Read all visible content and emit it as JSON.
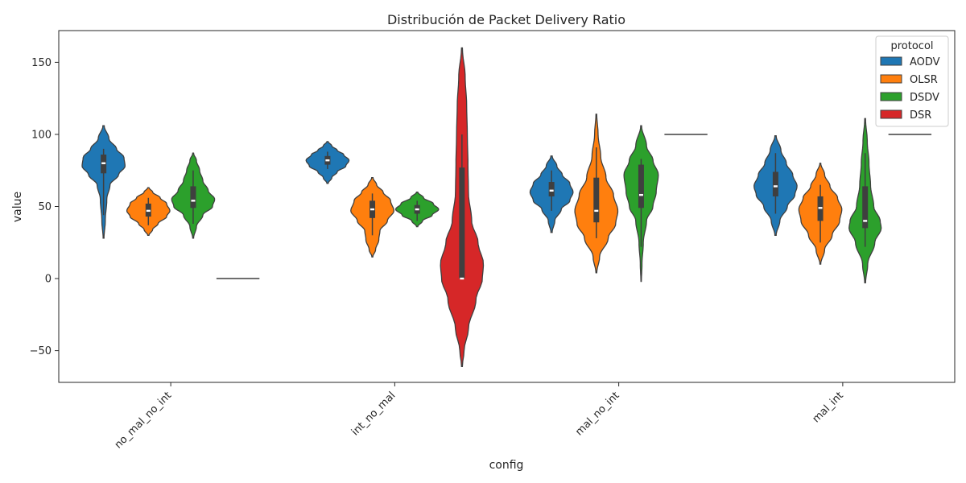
{
  "chart_data": {
    "type": "violin",
    "title": "Distribución de Packet Delivery Ratio",
    "xlabel": "config",
    "ylabel": "value",
    "ylim": [
      -72,
      172
    ],
    "yticks": [
      -50,
      0,
      50,
      100,
      150
    ],
    "yticklabels": [
      "−50",
      "0",
      "50",
      "100",
      "150"
    ],
    "categories": [
      "no_mal_no_int",
      "int_no_mal",
      "mal_no_int",
      "mal_int"
    ],
    "grid": false,
    "legend": {
      "title": "protocol",
      "placement": "top-right"
    },
    "series": [
      {
        "name": "AODV",
        "color": "#1f77b4",
        "groups": [
          {
            "violin_min": 28,
            "violin_max": 106,
            "q1": 73,
            "median": 80,
            "q3": 86,
            "whisker_low": 44,
            "whisker_high": 90,
            "profile": [
              [
                28,
                0.02
              ],
              [
                40,
                0.08
              ],
              [
                55,
                0.15
              ],
              [
                65,
                0.3
              ],
              [
                72,
                0.7
              ],
              [
                78,
                1.0
              ],
              [
                84,
                0.95
              ],
              [
                90,
                0.6
              ],
              [
                97,
                0.25
              ],
              [
                106,
                0.03
              ]
            ]
          },
          {
            "violin_min": 66,
            "violin_max": 95,
            "q1": 79,
            "median": 82,
            "q3": 85,
            "whisker_low": 76,
            "whisker_high": 88,
            "profile": [
              [
                66,
                0.03
              ],
              [
                70,
                0.2
              ],
              [
                74,
                0.45
              ],
              [
                78,
                0.85
              ],
              [
                82,
                1.0
              ],
              [
                86,
                0.75
              ],
              [
                89,
                0.45
              ],
              [
                92,
                0.2
              ],
              [
                95,
                0.03
              ]
            ]
          },
          {
            "violin_min": 32,
            "violin_max": 85,
            "q1": 57,
            "median": 61,
            "q3": 67,
            "whisker_low": 47,
            "whisker_high": 75,
            "profile": [
              [
                32,
                0.03
              ],
              [
                40,
                0.15
              ],
              [
                48,
                0.45
              ],
              [
                54,
                0.85
              ],
              [
                60,
                1.0
              ],
              [
                66,
                0.85
              ],
              [
                72,
                0.5
              ],
              [
                78,
                0.25
              ],
              [
                85,
                0.03
              ]
            ]
          },
          {
            "violin_min": 30,
            "violin_max": 99,
            "q1": 57,
            "median": 64,
            "q3": 74,
            "whisker_low": 45,
            "whisker_high": 87,
            "profile": [
              [
                30,
                0.03
              ],
              [
                40,
                0.2
              ],
              [
                50,
                0.55
              ],
              [
                58,
                0.9
              ],
              [
                64,
                1.0
              ],
              [
                72,
                0.8
              ],
              [
                80,
                0.5
              ],
              [
                89,
                0.25
              ],
              [
                99,
                0.03
              ]
            ]
          }
        ]
      },
      {
        "name": "OLSR",
        "color": "#ff7f0e",
        "groups": [
          {
            "violin_min": 30,
            "violin_max": 63,
            "q1": 43,
            "median": 47,
            "q3": 52,
            "whisker_low": 37,
            "whisker_high": 56,
            "profile": [
              [
                30,
                0.03
              ],
              [
                34,
                0.2
              ],
              [
                38,
                0.45
              ],
              [
                43,
                0.85
              ],
              [
                47,
                1.0
              ],
              [
                52,
                0.85
              ],
              [
                56,
                0.55
              ],
              [
                60,
                0.2
              ],
              [
                63,
                0.03
              ]
            ]
          },
          {
            "violin_min": 15,
            "violin_max": 70,
            "q1": 42,
            "median": 48,
            "q3": 54,
            "whisker_low": 30,
            "whisker_high": 59,
            "profile": [
              [
                15,
                0.02
              ],
              [
                20,
                0.15
              ],
              [
                27,
                0.3
              ],
              [
                33,
                0.35
              ],
              [
                40,
                0.7
              ],
              [
                47,
                1.0
              ],
              [
                54,
                0.85
              ],
              [
                60,
                0.5
              ],
              [
                65,
                0.2
              ],
              [
                70,
                0.03
              ]
            ]
          },
          {
            "violin_min": 4,
            "violin_max": 114,
            "q1": 39,
            "median": 47,
            "q3": 70,
            "whisker_low": 28,
            "whisker_high": 91,
            "profile": [
              [
                4,
                0.02
              ],
              [
                15,
                0.15
              ],
              [
                28,
                0.55
              ],
              [
                38,
                0.9
              ],
              [
                47,
                1.0
              ],
              [
                58,
                0.8
              ],
              [
                70,
                0.45
              ],
              [
                85,
                0.2
              ],
              [
                100,
                0.08
              ],
              [
                114,
                0.02
              ]
            ]
          },
          {
            "violin_min": 10,
            "violin_max": 80,
            "q1": 40,
            "median": 49,
            "q3": 57,
            "whisker_low": 25,
            "whisker_high": 65,
            "profile": [
              [
                10,
                0.02
              ],
              [
                20,
                0.2
              ],
              [
                30,
                0.55
              ],
              [
                40,
                0.9
              ],
              [
                48,
                1.0
              ],
              [
                56,
                0.8
              ],
              [
                64,
                0.45
              ],
              [
                72,
                0.2
              ],
              [
                80,
                0.02
              ]
            ]
          }
        ]
      },
      {
        "name": "DSDV",
        "color": "#2ca02c",
        "groups": [
          {
            "violin_min": 28,
            "violin_max": 87,
            "q1": 49,
            "median": 54,
            "q3": 64,
            "whisker_low": 38,
            "whisker_high": 75,
            "profile": [
              [
                28,
                0.02
              ],
              [
                36,
                0.15
              ],
              [
                44,
                0.45
              ],
              [
                50,
                0.9
              ],
              [
                55,
                1.0
              ],
              [
                61,
                0.7
              ],
              [
                68,
                0.45
              ],
              [
                75,
                0.3
              ],
              [
                82,
                0.15
              ],
              [
                87,
                0.02
              ]
            ]
          },
          {
            "violin_min": 36,
            "violin_max": 60,
            "q1": 45,
            "median": 48,
            "q3": 51,
            "whisker_low": 40,
            "whisker_high": 54,
            "profile": [
              [
                36,
                0.03
              ],
              [
                40,
                0.25
              ],
              [
                44,
                0.7
              ],
              [
                48,
                1.0
              ],
              [
                52,
                0.75
              ],
              [
                56,
                0.3
              ],
              [
                60,
                0.03
              ]
            ]
          },
          {
            "violin_min": -2,
            "violin_max": 106,
            "q1": 49,
            "median": 58,
            "q3": 79,
            "whisker_low": 22,
            "whisker_high": 83,
            "profile": [
              [
                -2,
                0.01
              ],
              [
                10,
                0.04
              ],
              [
                25,
                0.1
              ],
              [
                40,
                0.25
              ],
              [
                50,
                0.55
              ],
              [
                60,
                0.7
              ],
              [
                72,
                0.8
              ],
              [
                82,
                0.55
              ],
              [
                92,
                0.25
              ],
              [
                106,
                0.02
              ]
            ]
          },
          {
            "violin_min": -3,
            "violin_max": 111,
            "q1": 35,
            "median": 40,
            "q3": 64,
            "whisker_low": 22,
            "whisker_high": 87,
            "profile": [
              [
                -3,
                0.02
              ],
              [
                10,
                0.12
              ],
              [
                25,
                0.45
              ],
              [
                35,
                0.75
              ],
              [
                40,
                0.7
              ],
              [
                50,
                0.4
              ],
              [
                65,
                0.25
              ],
              [
                80,
                0.18
              ],
              [
                95,
                0.1
              ],
              [
                111,
                0.02
              ]
            ]
          }
        ]
      },
      {
        "name": "DSR",
        "color": "#d62728",
        "groups": [
          {
            "constant": 0
          },
          {
            "violin_min": -61,
            "violin_max": 160,
            "q1": 0,
            "median": 0,
            "q3": 77,
            "whisker_low": 0,
            "whisker_high": 100,
            "profile": [
              [
                -61,
                0.02
              ],
              [
                -50,
                0.1
              ],
              [
                -35,
                0.3
              ],
              [
                -15,
                0.65
              ],
              [
                0,
                0.95
              ],
              [
                10,
                1.0
              ],
              [
                25,
                0.75
              ],
              [
                40,
                0.45
              ],
              [
                60,
                0.3
              ],
              [
                80,
                0.28
              ],
              [
                100,
                0.25
              ],
              [
                120,
                0.22
              ],
              [
                140,
                0.15
              ],
              [
                160,
                0.02
              ]
            ]
          },
          {
            "constant": 100
          },
          {
            "constant": 100
          }
        ]
      }
    ]
  }
}
